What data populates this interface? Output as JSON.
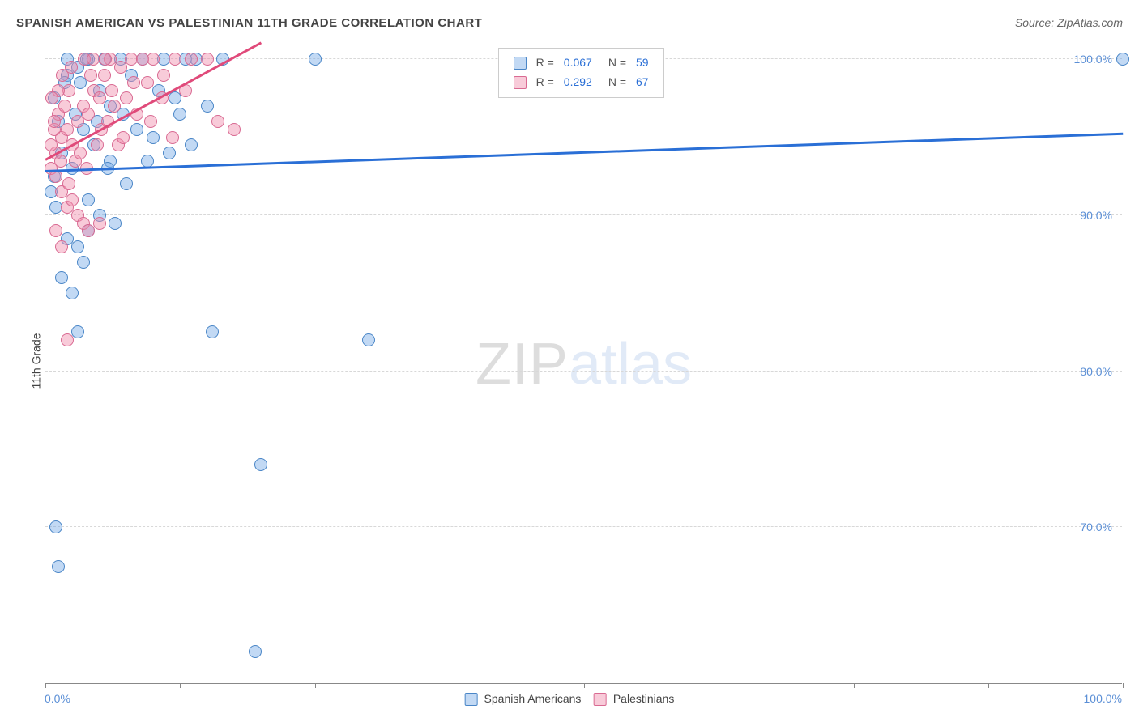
{
  "title": "SPANISH AMERICAN VS PALESTINIAN 11TH GRADE CORRELATION CHART",
  "source": "Source: ZipAtlas.com",
  "ylabel": "11th Grade",
  "watermark": {
    "part1": "ZIP",
    "part2": "atlas"
  },
  "chart": {
    "type": "scatter",
    "background_color": "#ffffff",
    "grid_color": "#d8d8d8",
    "axis_color": "#888888",
    "xlim": [
      0,
      100
    ],
    "ylim": [
      60,
      101
    ],
    "xtick_positions": [
      0,
      12.5,
      25,
      37.5,
      50,
      62.5,
      75,
      87.5,
      100
    ],
    "xtick_labels": {
      "0": "0.0%",
      "100": "100.0%"
    },
    "ytick_positions": [
      70,
      80,
      90,
      100
    ],
    "ytick_labels": {
      "70": "70.0%",
      "80": "80.0%",
      "90": "90.0%",
      "100": "100.0%"
    },
    "label_color": "#5b8fd6",
    "label_fontsize": 14,
    "title_color": "#444444",
    "marker_radius": 8,
    "marker_opacity": 0.45,
    "series": [
      {
        "name": "Spanish Americans",
        "legend_label": "Spanish Americans",
        "color_fill": "rgba(120,170,230,0.45)",
        "color_stroke": "#4a86c7",
        "trend_color": "#2a6fd6",
        "R": "0.067",
        "N": "59",
        "trend": {
          "x1": 0,
          "y1": 92.8,
          "x2": 100,
          "y2": 95.2
        },
        "points": [
          [
            0.8,
            92.5
          ],
          [
            1.5,
            94.0
          ],
          [
            2.0,
            100.0
          ],
          [
            3.0,
            99.5
          ],
          [
            4.0,
            100.0
          ],
          [
            5.5,
            100.0
          ],
          [
            6.0,
            97.0
          ],
          [
            3.5,
            95.5
          ],
          [
            2.5,
            93.0
          ],
          [
            4.5,
            94.5
          ],
          [
            5.0,
            98.0
          ],
          [
            7.0,
            100.0
          ],
          [
            8.0,
            99.0
          ],
          [
            9.0,
            100.0
          ],
          [
            10.0,
            95.0
          ],
          [
            11.0,
            100.0
          ],
          [
            12.0,
            97.5
          ],
          [
            13.0,
            100.0
          ],
          [
            14.0,
            100.0
          ],
          [
            16.5,
            100.0
          ],
          [
            9.5,
            93.5
          ],
          [
            7.5,
            92.0
          ],
          [
            1.0,
            90.5
          ],
          [
            2.0,
            88.5
          ],
          [
            3.0,
            88.0
          ],
          [
            4.0,
            89.0
          ],
          [
            6.5,
            89.5
          ],
          [
            1.5,
            86.0
          ],
          [
            2.5,
            85.0
          ],
          [
            3.5,
            87.0
          ],
          [
            0.5,
            91.5
          ],
          [
            1.2,
            96.0
          ],
          [
            2.8,
            96.5
          ],
          [
            3.2,
            98.5
          ],
          [
            4.8,
            96.0
          ],
          [
            8.5,
            95.5
          ],
          [
            11.5,
            94.0
          ],
          [
            12.5,
            96.5
          ],
          [
            15.0,
            97.0
          ],
          [
            5.0,
            90.0
          ],
          [
            3.0,
            82.5
          ],
          [
            1.0,
            70.0
          ],
          [
            1.2,
            67.5
          ],
          [
            25.0,
            100.0
          ],
          [
            15.5,
            82.5
          ],
          [
            20.0,
            74.0
          ],
          [
            30.0,
            82.0
          ],
          [
            19.5,
            62.0
          ],
          [
            100.0,
            100.0
          ],
          [
            6.0,
            93.5
          ],
          [
            4.0,
            91.0
          ],
          [
            2.0,
            99.0
          ],
          [
            0.8,
            97.5
          ],
          [
            1.8,
            98.5
          ],
          [
            3.8,
            100.0
          ],
          [
            5.8,
            93.0
          ],
          [
            7.2,
            96.5
          ],
          [
            10.5,
            98.0
          ],
          [
            13.5,
            94.5
          ]
        ]
      },
      {
        "name": "Palestinians",
        "legend_label": "Palestinians",
        "color_fill": "rgba(240,140,170,0.45)",
        "color_stroke": "#d96a92",
        "trend_color": "#e04a7a",
        "R": "0.292",
        "N": "67",
        "trend": {
          "x1": 0,
          "y1": 93.5,
          "x2": 20,
          "y2": 101.0
        },
        "points": [
          [
            0.5,
            93.0
          ],
          [
            1.0,
            94.0
          ],
          [
            1.5,
            95.0
          ],
          [
            2.0,
            95.5
          ],
          [
            2.5,
            94.5
          ],
          [
            3.0,
            96.0
          ],
          [
            3.5,
            97.0
          ],
          [
            4.0,
            96.5
          ],
          [
            4.5,
            98.0
          ],
          [
            5.0,
            97.5
          ],
          [
            5.5,
            99.0
          ],
          [
            6.0,
            100.0
          ],
          [
            7.0,
            99.5
          ],
          [
            8.0,
            100.0
          ],
          [
            9.0,
            100.0
          ],
          [
            10.0,
            100.0
          ],
          [
            11.0,
            99.0
          ],
          [
            12.0,
            100.0
          ],
          [
            13.5,
            100.0
          ],
          [
            15.0,
            100.0
          ],
          [
            16.0,
            96.0
          ],
          [
            17.5,
            95.5
          ],
          [
            0.8,
            95.5
          ],
          [
            1.2,
            96.5
          ],
          [
            1.8,
            97.0
          ],
          [
            2.2,
            98.0
          ],
          [
            2.8,
            93.5
          ],
          [
            3.2,
            94.0
          ],
          [
            3.8,
            93.0
          ],
          [
            4.2,
            99.0
          ],
          [
            4.8,
            94.5
          ],
          [
            5.2,
            95.5
          ],
          [
            5.8,
            96.0
          ],
          [
            6.2,
            98.0
          ],
          [
            6.8,
            94.5
          ],
          [
            7.5,
            97.5
          ],
          [
            8.5,
            96.5
          ],
          [
            9.5,
            98.5
          ],
          [
            1.0,
            92.5
          ],
          [
            1.5,
            91.5
          ],
          [
            2.0,
            90.5
          ],
          [
            2.5,
            91.0
          ],
          [
            3.0,
            90.0
          ],
          [
            3.5,
            89.5
          ],
          [
            4.0,
            89.0
          ],
          [
            1.0,
            89.0
          ],
          [
            1.5,
            88.0
          ],
          [
            0.5,
            94.5
          ],
          [
            0.8,
            96.0
          ],
          [
            1.2,
            98.0
          ],
          [
            1.6,
            99.0
          ],
          [
            2.4,
            99.5
          ],
          [
            3.6,
            100.0
          ],
          [
            4.4,
            100.0
          ],
          [
            5.6,
            100.0
          ],
          [
            6.4,
            97.0
          ],
          [
            7.2,
            95.0
          ],
          [
            8.2,
            98.5
          ],
          [
            9.8,
            96.0
          ],
          [
            10.8,
            97.5
          ],
          [
            11.8,
            95.0
          ],
          [
            13.0,
            98.0
          ],
          [
            0.6,
            97.5
          ],
          [
            1.4,
            93.5
          ],
          [
            2.2,
            92.0
          ],
          [
            5.0,
            89.5
          ],
          [
            2.0,
            82.0
          ]
        ]
      }
    ]
  },
  "r_legend_labels": {
    "R": "R =",
    "N": "N ="
  }
}
